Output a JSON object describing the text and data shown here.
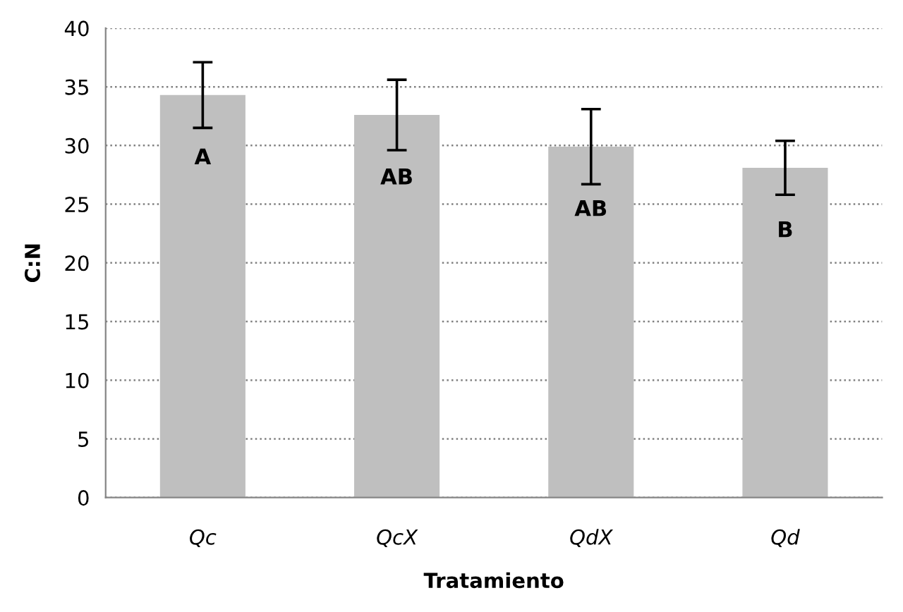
{
  "chart_data": {
    "type": "bar",
    "xlabel": "Tratamiento",
    "ylabel": "C:N",
    "categories": [
      "Qc",
      "QcX",
      "QdX",
      "Qd"
    ],
    "values": [
      34.3,
      32.6,
      29.9,
      28.1
    ],
    "errors": [
      2.8,
      3.0,
      3.2,
      2.3
    ],
    "color": "#bfbfbf",
    "ylim": [
      0,
      40
    ],
    "yticks": [
      0,
      5,
      10,
      15,
      20,
      25,
      30,
      35,
      40
    ],
    "grid": "y",
    "annotations": [
      "A",
      "AB",
      "AB",
      "B"
    ]
  }
}
